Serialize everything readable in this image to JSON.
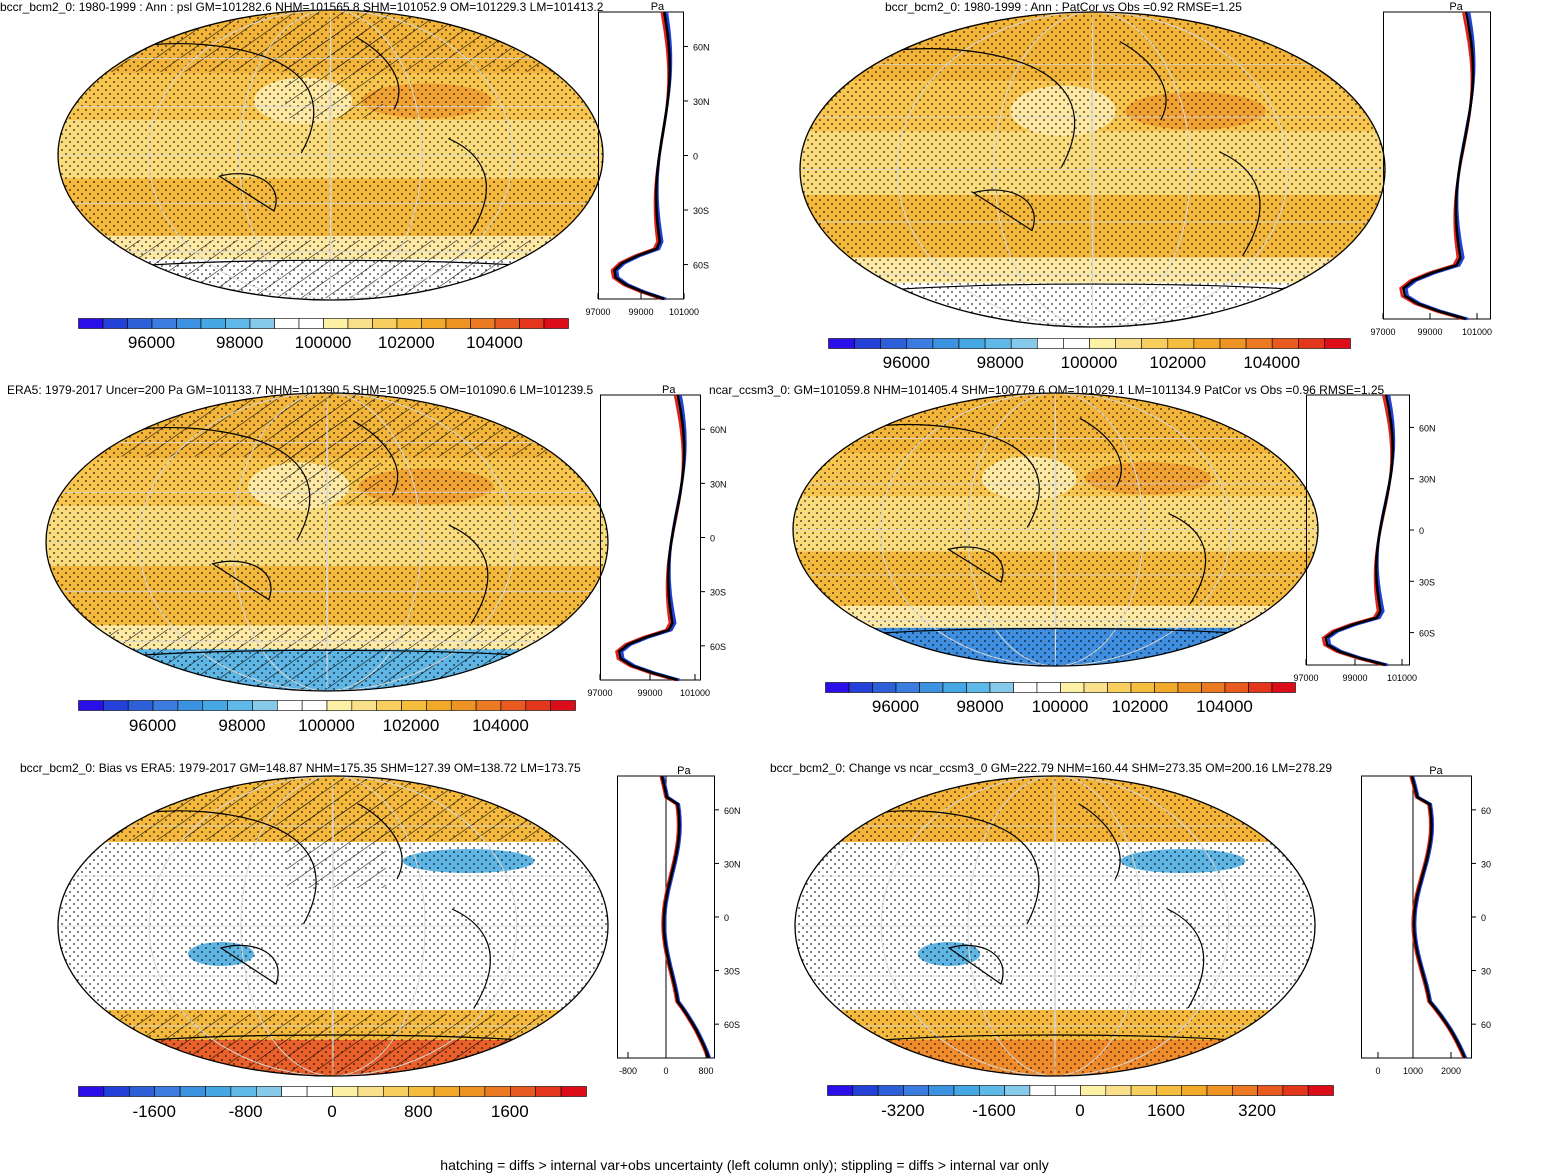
{
  "footnote": "hatching = diffs > internal var+obs uncertainty (left column only); stippling = diffs > internal var only",
  "colors": {
    "positive": "#f2b632",
    "positive_light": "#fbe08b",
    "negative": "#5fb6e4",
    "deep_negative": "#3a7fe0",
    "strong_positive": "#e9602a",
    "neutral": "#ffffff",
    "line": "#000000",
    "profile_model": "#e3211c",
    "profile_obs": "#1f3fdb",
    "profile_ref": "#000000"
  },
  "panels": [
    {
      "id": "p1",
      "title": "bccr_bcm2_0: 1980-1999 : Ann : psl GM=101282.6 NHM=101565.8 SHM=101052.9 OM=101229.3 LM=101413.2",
      "profile_unit": "Pa",
      "lat_labels": [
        "60N",
        "30N",
        "0",
        "30S",
        "60S"
      ],
      "profile_ticks": [
        "97000",
        "99000",
        "101000"
      ],
      "colorbar_ticks": [
        "96000",
        "98000",
        "100000",
        "102000",
        "104000"
      ],
      "colorbar_scale": "full"
    },
    {
      "id": "p2",
      "title": "bccr_bcm2_0: 1980-1999 : Ann : PatCor vs Obs =0.92 RMSE=1.25",
      "profile_unit": "Pa",
      "lat_labels": [],
      "profile_ticks": [
        "97000",
        "99000",
        "101000"
      ],
      "colorbar_ticks": [
        "96000",
        "98000",
        "100000",
        "102000",
        "104000"
      ],
      "colorbar_scale": "full"
    },
    {
      "id": "p3",
      "title": "ERA5: 1979-2017 Uncer=200 Pa GM=101133.7 NHM=101390.5 SHM=100925.5 OM=101090.6 LM=101239.5",
      "profile_unit": "Pa",
      "lat_labels": [
        "60N",
        "30N",
        "0",
        "30S",
        "60S"
      ],
      "profile_ticks": [
        "97000",
        "99000",
        "101000"
      ],
      "colorbar_ticks": [
        "96000",
        "98000",
        "100000",
        "102000",
        "104000"
      ],
      "colorbar_scale": "full"
    },
    {
      "id": "p4",
      "title": "ncar_ccsm3_0: GM=101059.8 NHM=101405.4 SHM=100779.6 OM=101029.1 LM=101134.9 PatCor vs Obs =0.96 RMSE=1.25",
      "profile_unit": "",
      "lat_labels": [
        "60N",
        "30N",
        "0",
        "30S",
        "60S"
      ],
      "profile_ticks": [
        "97000",
        "99000",
        "101000"
      ],
      "colorbar_ticks": [
        "96000",
        "98000",
        "100000",
        "102000",
        "104000"
      ],
      "colorbar_scale": "full"
    },
    {
      "id": "p5",
      "title": "bccr_bcm2_0: Bias vs ERA5: 1979-2017 GM=148.87 NHM=175.35 SHM=127.39 OM=138.72 LM=173.75",
      "profile_unit": "Pa",
      "lat_labels": [
        "60N",
        "30N",
        "0",
        "30S",
        "60S"
      ],
      "profile_ticks": [
        "-800",
        "0",
        "800"
      ],
      "colorbar_ticks": [
        "-1600",
        "-800",
        "0",
        "800",
        "1600"
      ],
      "colorbar_scale": "diff"
    },
    {
      "id": "p6",
      "title": "bccr_bcm2_0: Change vs ncar_ccsm3_0 GM=222.79 NHM=160.44 SHM=273.35 OM=200.16 LM=278.29",
      "profile_unit": "Pa",
      "lat_labels": [
        "60",
        "30",
        "0",
        "30",
        "60"
      ],
      "profile_ticks": [
        "0",
        "1000",
        "2000"
      ],
      "colorbar_ticks": [
        "-3200",
        "-1600",
        "0",
        "1600",
        "3200"
      ],
      "colorbar_scale": "diff"
    }
  ]
}
